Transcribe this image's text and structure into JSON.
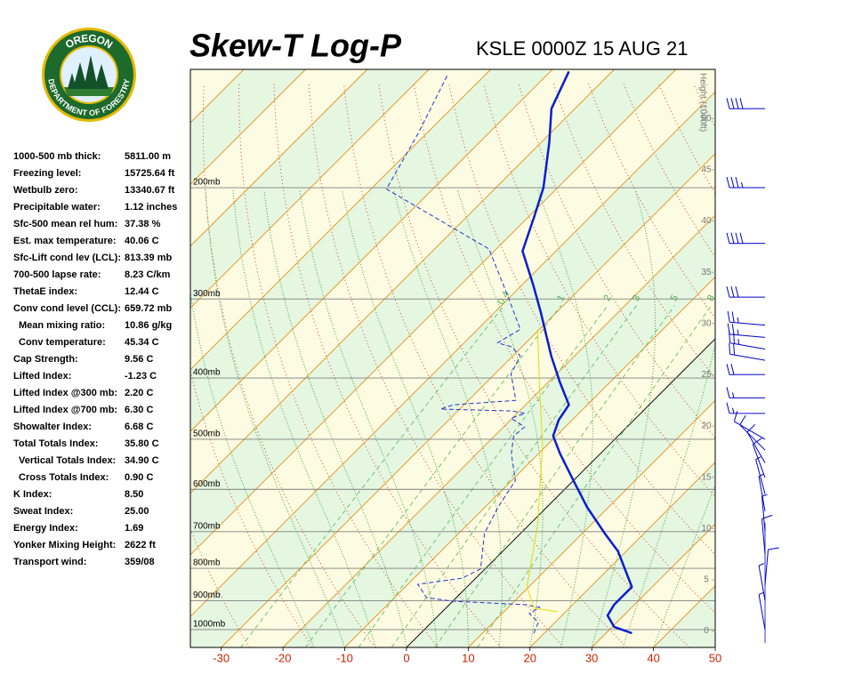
{
  "logo": {
    "top": "OREGON",
    "bottom": "DEPARTMENT OF FORESTRY"
  },
  "indices": [
    {
      "label": "1000-500 mb thick:",
      "value": "5811.00 m"
    },
    {
      "label": "Freezing level:",
      "value": "15725.64 ft"
    },
    {
      "label": "Wetbulb zero:",
      "value": "13340.67 ft"
    },
    {
      "label": "Precipitable water:",
      "value": "1.12 inches"
    },
    {
      "label": "Sfc-500 mean rel hum:",
      "value": "37.38 %"
    },
    {
      "label": "Est. max temperature:",
      "value": "40.06 C"
    },
    {
      "label": "Sfc-Lift cond lev (LCL):",
      "value": "813.39 mb"
    },
    {
      "label": "700-500 lapse rate:",
      "value": "8.23 C/km"
    },
    {
      "label": "ThetaE index:",
      "value": "12.44 C"
    },
    {
      "label": "Conv cond level (CCL):",
      "value": "659.72 mb"
    },
    {
      "label": "Mean mixing ratio:",
      "value": "10.86 g/kg"
    },
    {
      "label": "Conv temperature:",
      "value": "45.34 C"
    },
    {
      "label": "Cap Strength:",
      "value": "9.56 C"
    },
    {
      "label": "Lifted Index:",
      "value": "-1.23 C"
    },
    {
      "label": "Lifted Index @300 mb:",
      "value": "2.20 C"
    },
    {
      "label": "Lifted Index @700 mb:",
      "value": "6.30 C"
    },
    {
      "label": "Showalter Index:",
      "value": "6.68 C"
    },
    {
      "label": "Total Totals Index:",
      "value": "35.80 C"
    },
    {
      "label": "Vertical Totals Index:",
      "value": "34.90 C"
    },
    {
      "label": "Cross Totals Index:",
      "value": "0.90 C"
    },
    {
      "label": "K Index:",
      "value": "8.50"
    },
    {
      "label": "Sweat Index:",
      "value": "25.00"
    },
    {
      "label": "Energy Index:",
      "value": "1.69"
    },
    {
      "label": "Yonker Mixing Height:",
      "value": "2622 ft"
    },
    {
      "label": "Transport wind:",
      "value": "359/08"
    }
  ],
  "chart_data": {
    "type": "skewt",
    "title": "Skew-T Log-P",
    "subtitle": "KSLE 0000Z 15 AUG 21",
    "xlim": [
      -35,
      50
    ],
    "xticks": [
      -30,
      -20,
      -10,
      0,
      10,
      20,
      30,
      40,
      50
    ],
    "ylim": [
      1067,
      130
    ],
    "log_y": true,
    "yticks": [
      {
        "value": 1000,
        "label": "1000mb"
      },
      {
        "value": 900,
        "label": "900mb"
      },
      {
        "value": 800,
        "label": "800mb"
      },
      {
        "value": 700,
        "label": "700mb"
      },
      {
        "value": 600,
        "label": "600mb"
      },
      {
        "value": 500,
        "label": "500mb"
      },
      {
        "value": 400,
        "label": "400mb"
      },
      {
        "value": 300,
        "label": "300mb"
      },
      {
        "value": 200,
        "label": "200mb"
      }
    ],
    "y2label": "Height (1000ft)",
    "y2lim": [
      -1.6,
      54.8
    ],
    "y2ticks": [
      0,
      5,
      10,
      15,
      20,
      25,
      30,
      35,
      40,
      45,
      50
    ],
    "mixing_ratios": [
      0.4,
      1,
      2,
      3,
      5,
      8
    ],
    "series": [
      {
        "color": "#0a1ecc",
        "style": "solid",
        "pressure": [
          1013,
          990,
          950,
          913,
          856,
          752,
          705,
          640,
          581,
          527,
          494,
          466,
          441,
          407,
          369,
          314,
          285,
          252,
          223,
          200,
          170,
          150,
          131
        ],
        "values": [
          34.2,
          30.3,
          27.4,
          26.7,
          26.7,
          18.7,
          13.7,
          6.5,
          0,
          -6.5,
          -10.5,
          -12.2,
          -13.0,
          -18.0,
          -23.8,
          -32.7,
          -38.2,
          -45.4,
          -49.0,
          -52.3,
          -58.6,
          -63.8,
          -67.0
        ]
      },
      {
        "color": "#2233cc",
        "style": "dashed",
        "pressure": [
          1013,
          974,
          943,
          922,
          913,
          902,
          890,
          848,
          829,
          802,
          705,
          640,
          581,
          527,
          494,
          478,
          463,
          455,
          451,
          448,
          441,
          434,
          394,
          369,
          357,
          352,
          335,
          294,
          250,
          201,
          164,
          132
        ],
        "values": [
          18.3,
          17.3,
          14.4,
          15.1,
          12.2,
          0.1,
          -4.8,
          -8.4,
          -2.2,
          -0.7,
          -5.8,
          -7.9,
          -9.4,
          -14.4,
          -16.9,
          -16.6,
          -20.2,
          -18.7,
          -21.3,
          -33.1,
          -31.7,
          -22.3,
          -27.4,
          -28.8,
          -31.7,
          -34.6,
          -33.1,
          -41.1,
          -51.2,
          -77.5,
          -81.4,
          -86.2
        ]
      },
      {
        "color": "#e6dc00",
        "style": "solid",
        "pressure": [
          937,
          925,
          856,
          683,
          510,
          420,
          335
        ],
        "values": [
          18.7,
          14.3,
          9.7,
          1.4,
          -10.8,
          -19.9,
          -30.3
        ]
      }
    ],
    "winds": {
      "pressure": [
        150,
        200,
        245,
        298,
        330,
        345,
        360,
        375,
        395,
        430,
        455,
        500,
        520,
        545,
        575,
        610,
        650,
        700,
        760,
        850,
        900,
        1000
      ],
      "direction": [
        270,
        270,
        270,
        270,
        275,
        275,
        280,
        280,
        270,
        270,
        270,
        300,
        315,
        330,
        340,
        345,
        350,
        355,
        355,
        5,
        350,
        350
      ],
      "speed": [
        40,
        35,
        40,
        30,
        25,
        25,
        25,
        20,
        20,
        15,
        15,
        10,
        10,
        10,
        10,
        5,
        5,
        5,
        10,
        10,
        8,
        5
      ],
      "color": "#0000cc"
    }
  }
}
